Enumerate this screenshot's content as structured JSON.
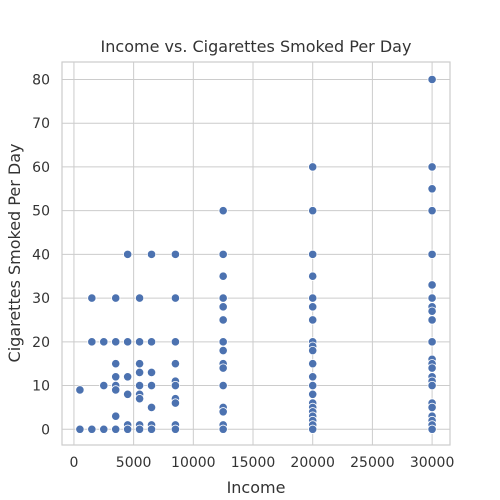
{
  "chart_data": {
    "type": "scatter",
    "title": "Income vs. Cigarettes Smoked Per Day",
    "xlabel": "Income",
    "ylabel": "Cigarettes Smoked Per Day",
    "xlim": [
      -1000,
      31500
    ],
    "ylim": [
      -3.6,
      84
    ],
    "xticks": [
      0,
      5000,
      10000,
      15000,
      20000,
      25000,
      30000
    ],
    "yticks": [
      0,
      10,
      20,
      30,
      40,
      50,
      60,
      70,
      80
    ],
    "grid": true,
    "point_color": "#4c72b0",
    "points": [
      [
        500,
        9
      ],
      [
        500,
        0
      ],
      [
        1500,
        30
      ],
      [
        1500,
        20
      ],
      [
        1500,
        0
      ],
      [
        2500,
        20
      ],
      [
        2500,
        10
      ],
      [
        2500,
        0
      ],
      [
        3500,
        30
      ],
      [
        3500,
        20
      ],
      [
        3500,
        15
      ],
      [
        3500,
        12
      ],
      [
        3500,
        10
      ],
      [
        3500,
        9
      ],
      [
        3500,
        3
      ],
      [
        3500,
        0
      ],
      [
        4500,
        40
      ],
      [
        4500,
        20
      ],
      [
        4500,
        12
      ],
      [
        4500,
        8
      ],
      [
        4500,
        1
      ],
      [
        4500,
        0
      ],
      [
        5500,
        30
      ],
      [
        5500,
        20
      ],
      [
        5500,
        15
      ],
      [
        5500,
        13
      ],
      [
        5500,
        10
      ],
      [
        5500,
        8
      ],
      [
        5500,
        7
      ],
      [
        5500,
        1
      ],
      [
        5500,
        0
      ],
      [
        6500,
        40
      ],
      [
        6500,
        20
      ],
      [
        6500,
        13
      ],
      [
        6500,
        10
      ],
      [
        6500,
        5
      ],
      [
        6500,
        1
      ],
      [
        6500,
        0
      ],
      [
        8500,
        40
      ],
      [
        8500,
        30
      ],
      [
        8500,
        20
      ],
      [
        8500,
        15
      ],
      [
        8500,
        11
      ],
      [
        8500,
        10
      ],
      [
        8500,
        7
      ],
      [
        8500,
        6
      ],
      [
        8500,
        1
      ],
      [
        8500,
        0
      ],
      [
        12500,
        50
      ],
      [
        12500,
        40
      ],
      [
        12500,
        35
      ],
      [
        12500,
        30
      ],
      [
        12500,
        28
      ],
      [
        12500,
        25
      ],
      [
        12500,
        20
      ],
      [
        12500,
        18
      ],
      [
        12500,
        15
      ],
      [
        12500,
        14
      ],
      [
        12500,
        10
      ],
      [
        12500,
        5
      ],
      [
        12500,
        4
      ],
      [
        12500,
        1
      ],
      [
        12500,
        0
      ],
      [
        20000,
        60
      ],
      [
        20000,
        50
      ],
      [
        20000,
        40
      ],
      [
        20000,
        35
      ],
      [
        20000,
        30
      ],
      [
        20000,
        28
      ],
      [
        20000,
        25
      ],
      [
        20000,
        20
      ],
      [
        20000,
        19
      ],
      [
        20000,
        18
      ],
      [
        20000,
        15
      ],
      [
        20000,
        12
      ],
      [
        20000,
        10
      ],
      [
        20000,
        8
      ],
      [
        20000,
        6
      ],
      [
        20000,
        5
      ],
      [
        20000,
        4
      ],
      [
        20000,
        3
      ],
      [
        20000,
        2
      ],
      [
        20000,
        1
      ],
      [
        20000,
        0
      ],
      [
        30000,
        80
      ],
      [
        30000,
        60
      ],
      [
        30000,
        55
      ],
      [
        30000,
        50
      ],
      [
        30000,
        40
      ],
      [
        30000,
        33
      ],
      [
        30000,
        30
      ],
      [
        30000,
        28
      ],
      [
        30000,
        27
      ],
      [
        30000,
        25
      ],
      [
        30000,
        20
      ],
      [
        30000,
        16
      ],
      [
        30000,
        15
      ],
      [
        30000,
        14
      ],
      [
        30000,
        12
      ],
      [
        30000,
        11
      ],
      [
        30000,
        10
      ],
      [
        30000,
        6
      ],
      [
        30000,
        5
      ],
      [
        30000,
        3
      ],
      [
        30000,
        2
      ],
      [
        30000,
        1
      ],
      [
        30000,
        0
      ]
    ]
  }
}
